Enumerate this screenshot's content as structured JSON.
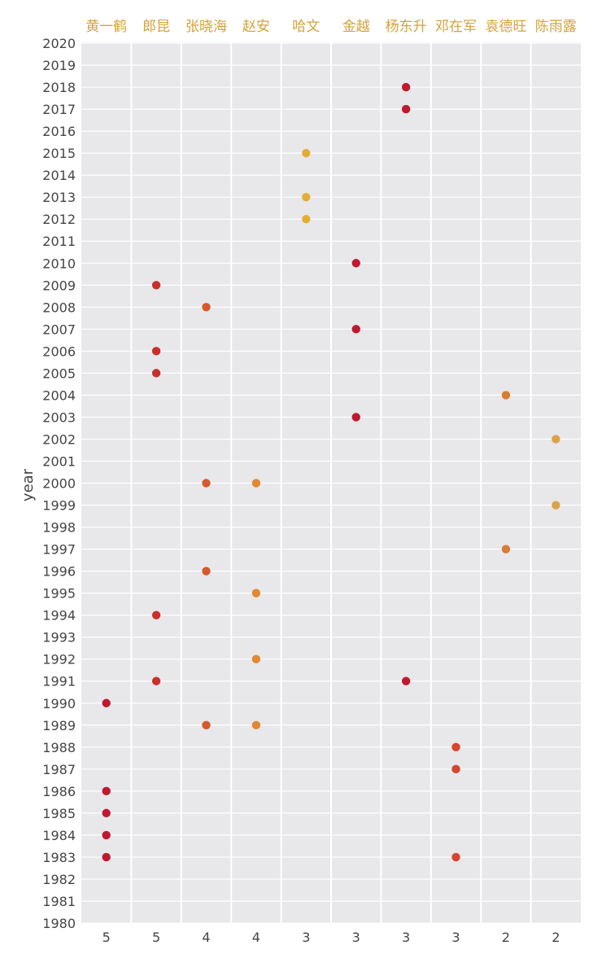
{
  "chart_data": {
    "type": "scatter",
    "title": "",
    "ylabel": "year",
    "xlabel": "",
    "ylim": [
      1980,
      2020
    ],
    "grid": true,
    "colors": {
      "panel": "#e8e7ea",
      "grid": "#ffffff",
      "header": "#d4a23a"
    },
    "columns": [
      {
        "name": "黄一鹤",
        "count": "5",
        "color": "#c0182f",
        "points": [
          1983,
          1984,
          1985,
          1986,
          1990
        ]
      },
      {
        "name": "郎昆",
        "count": "5",
        "color": "#c8302b",
        "points": [
          1991,
          1994,
          2005,
          2006,
          2009
        ]
      },
      {
        "name": "张晓海",
        "count": "4",
        "color": "#d5592c",
        "points": [
          1989,
          1996,
          2000,
          2008
        ]
      },
      {
        "name": "赵安",
        "count": "4",
        "color": "#e08833",
        "points": [
          1989,
          1992,
          1995,
          2000
        ]
      },
      {
        "name": "哈文",
        "count": "3",
        "color": "#e3ae35",
        "points": [
          2012,
          2013,
          2015
        ]
      },
      {
        "name": "金越",
        "count": "3",
        "color": "#c0182f",
        "points": [
          2003,
          2007,
          2010
        ]
      },
      {
        "name": "杨东升",
        "count": "3",
        "color": "#c0182f",
        "points": [
          1991,
          2017,
          2018
        ]
      },
      {
        "name": "邓在军",
        "count": "3",
        "color": "#d5462c",
        "points": [
          1983,
          1987,
          1988
        ]
      },
      {
        "name": "袁德旺",
        "count": "2",
        "color": "#d77d33",
        "points": [
          1997,
          2004
        ]
      },
      {
        "name": "陈雨露",
        "count": "2",
        "color": "#daa24a",
        "points": [
          1999,
          2002
        ]
      }
    ]
  }
}
